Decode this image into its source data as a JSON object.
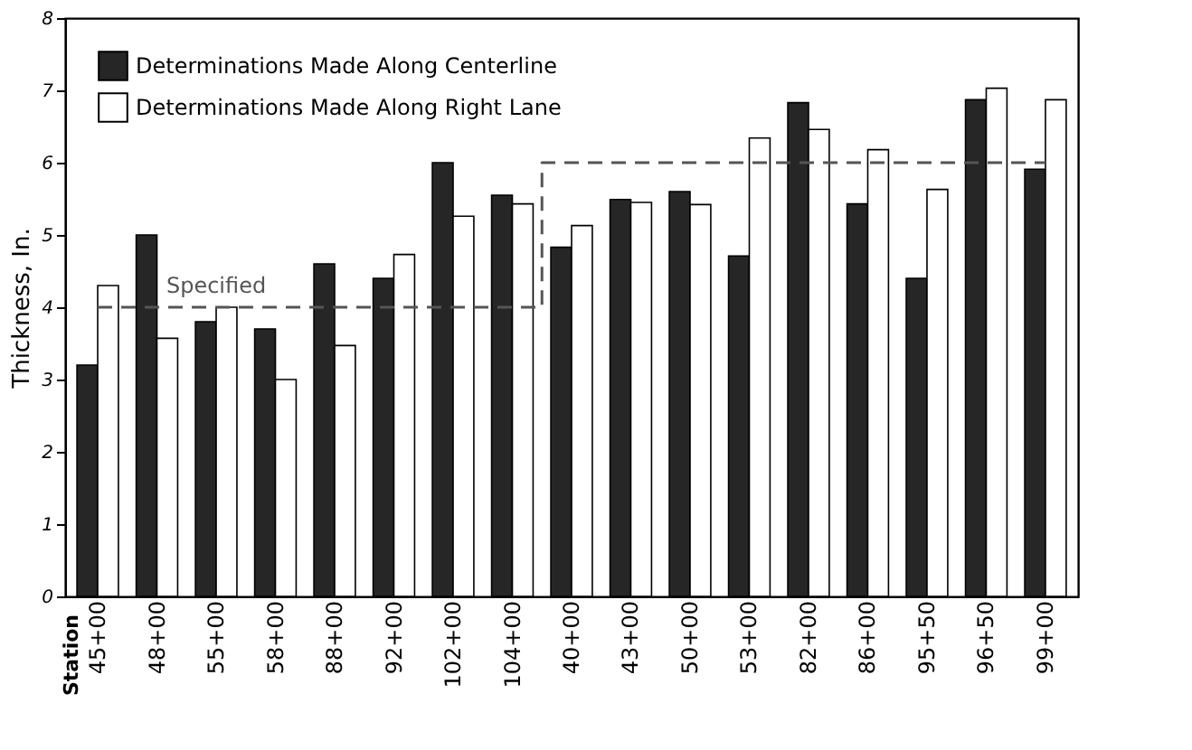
{
  "chart_data": {
    "type": "bar",
    "ylabel": "Thickness, In.",
    "categories": [
      "45+00",
      "48+00",
      "55+00",
      "58+00",
      "88+00",
      "92+00",
      "102+00",
      "104+00",
      "40+00",
      "43+00",
      "50+00",
      "53+00",
      "82+00",
      "86+00",
      "95+50",
      "96+50",
      "99+00"
    ],
    "series": [
      {
        "name": "Determinations Made Along Centerline",
        "color": "#262626",
        "values": [
          3.2,
          5.0,
          3.8,
          3.7,
          4.6,
          4.4,
          6.0,
          5.55,
          4.83,
          5.49,
          5.6,
          4.71,
          6.83,
          5.43,
          4.4,
          6.87,
          5.91
        ]
      },
      {
        "name": "Determinations Made Along Right Lane",
        "color": "#ffffff",
        "values": [
          4.3,
          3.57,
          4.0,
          3.0,
          3.47,
          4.73,
          5.26,
          5.43,
          5.13,
          5.45,
          5.42,
          6.34,
          6.46,
          6.18,
          5.63,
          7.03,
          6.87
        ]
      },
      {
        "name": "Specified",
        "type": "step",
        "color": "#555555",
        "line_style": "dashed",
        "values": [
          4,
          4,
          4,
          4,
          4,
          4,
          4,
          4,
          6,
          6,
          6,
          6,
          6,
          6,
          6,
          6,
          6
        ]
      }
    ],
    "ylim": [
      0,
      8
    ],
    "yticks": [
      0,
      1,
      2,
      3,
      4,
      5,
      6,
      7,
      8
    ],
    "grid": false,
    "legend": "top left",
    "annotations": [
      "Station"
    ]
  }
}
